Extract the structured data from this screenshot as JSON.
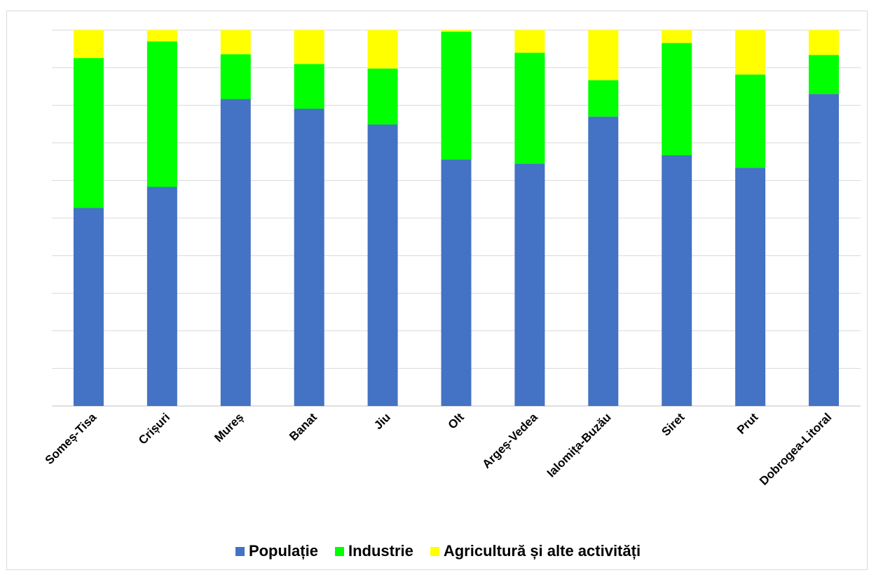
{
  "chart_data": {
    "type": "bar",
    "stacked": true,
    "normalized": true,
    "categories": [
      "Someș-Tisa",
      "Crișuri",
      "Mureș",
      "Banat",
      "Jiu",
      "Olt",
      "Argeș-Vedea",
      "Ialomița-Buzău",
      "Siret",
      "Prut",
      "Dobrogea-Litoral"
    ],
    "series": [
      {
        "name": "Populație",
        "color": "#4472c4",
        "values": [
          0.527,
          0.583,
          0.817,
          0.791,
          0.749,
          0.656,
          0.645,
          0.77,
          0.667,
          0.634,
          0.83
        ]
      },
      {
        "name": "Industrie",
        "color": "#00ff00",
        "values": [
          0.399,
          0.387,
          0.119,
          0.119,
          0.149,
          0.34,
          0.295,
          0.097,
          0.299,
          0.248,
          0.104
        ]
      },
      {
        "name": "Agricultură și alte activități",
        "color": "#ffff00",
        "values": [
          0.074,
          0.03,
          0.064,
          0.09,
          0.102,
          0.004,
          0.06,
          0.133,
          0.034,
          0.118,
          0.066
        ]
      }
    ],
    "ylim": [
      0,
      1
    ],
    "grid": true,
    "y_tick_labels_shown": false,
    "legend_position": "bottom",
    "title": "",
    "xlabel": "",
    "ylabel": ""
  }
}
